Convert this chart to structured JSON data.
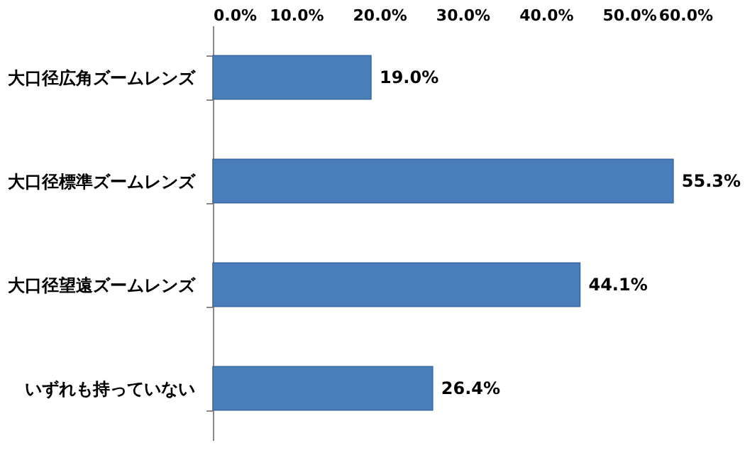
{
  "chart_data": {
    "type": "bar",
    "orientation": "horizontal",
    "categories": [
      "大口径広角ズームレンズ",
      "大口径標準ズームレンズ",
      "大口径望遠ズームレンズ",
      "いずれも持っていない"
    ],
    "values": [
      19.0,
      55.3,
      44.1,
      26.4
    ],
    "color": "#4a7ebb",
    "value_labels": [
      "19.0%",
      "55.3%",
      "44.1%",
      "26.4%"
    ],
    "xlim": [
      0,
      60
    ],
    "xticks": [
      {
        "value": 0,
        "label": "0.0%"
      },
      {
        "value": 10,
        "label": "10.0%"
      },
      {
        "value": 20,
        "label": "20.0%"
      },
      {
        "value": 30,
        "label": "30.0%"
      },
      {
        "value": 40,
        "label": "40.0%"
      },
      {
        "value": 50,
        "label": "50.0%"
      },
      {
        "value": 60,
        "label": "60.0%"
      }
    ],
    "grid": false
  }
}
